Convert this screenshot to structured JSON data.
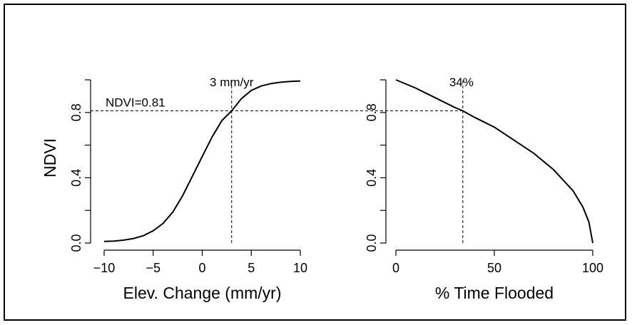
{
  "chart_data": [
    {
      "type": "line",
      "xlabel": "Elev. Change (mm/yr)",
      "ylabel": "NDVI",
      "xlim": [
        -10,
        10
      ],
      "ylim": [
        0,
        1
      ],
      "x_ticks": [
        "−10",
        "−5",
        "0",
        "5",
        "10"
      ],
      "y_ticks": [
        "0.0",
        "0.4",
        "0.8"
      ],
      "x": [
        -10,
        -9,
        -8,
        -7,
        -6,
        -5,
        -4,
        -3,
        -2,
        -1,
        0,
        1,
        2,
        3,
        4,
        5,
        6,
        7,
        8,
        9,
        10
      ],
      "y": [
        0.01,
        0.012,
        0.018,
        0.028,
        0.045,
        0.075,
        0.12,
        0.19,
        0.29,
        0.41,
        0.53,
        0.65,
        0.75,
        0.81,
        0.885,
        0.935,
        0.962,
        0.977,
        0.985,
        0.99,
        0.993
      ],
      "annotations": {
        "vline": {
          "x": 3,
          "label": "3 mm/yr"
        },
        "hline": {
          "y": 0.81,
          "label": "NDVI=0.81"
        }
      },
      "grid": false
    },
    {
      "type": "line",
      "xlabel": "% Time Flooded",
      "ylabel": "",
      "xlim": [
        0,
        100
      ],
      "ylim": [
        0,
        1
      ],
      "x_ticks": [
        "0",
        "50",
        "100"
      ],
      "y_ticks": [
        "0.0",
        "0.4",
        "0.8"
      ],
      "x": [
        0,
        10,
        20,
        30,
        34,
        40,
        50,
        60,
        70,
        80,
        90,
        95,
        98,
        100
      ],
      "y": [
        1.0,
        0.95,
        0.89,
        0.83,
        0.81,
        0.77,
        0.71,
        0.63,
        0.55,
        0.45,
        0.32,
        0.22,
        0.13,
        0.0
      ],
      "annotations": {
        "vline": {
          "x": 34,
          "label": "34%"
        }
      },
      "grid": false
    }
  ]
}
